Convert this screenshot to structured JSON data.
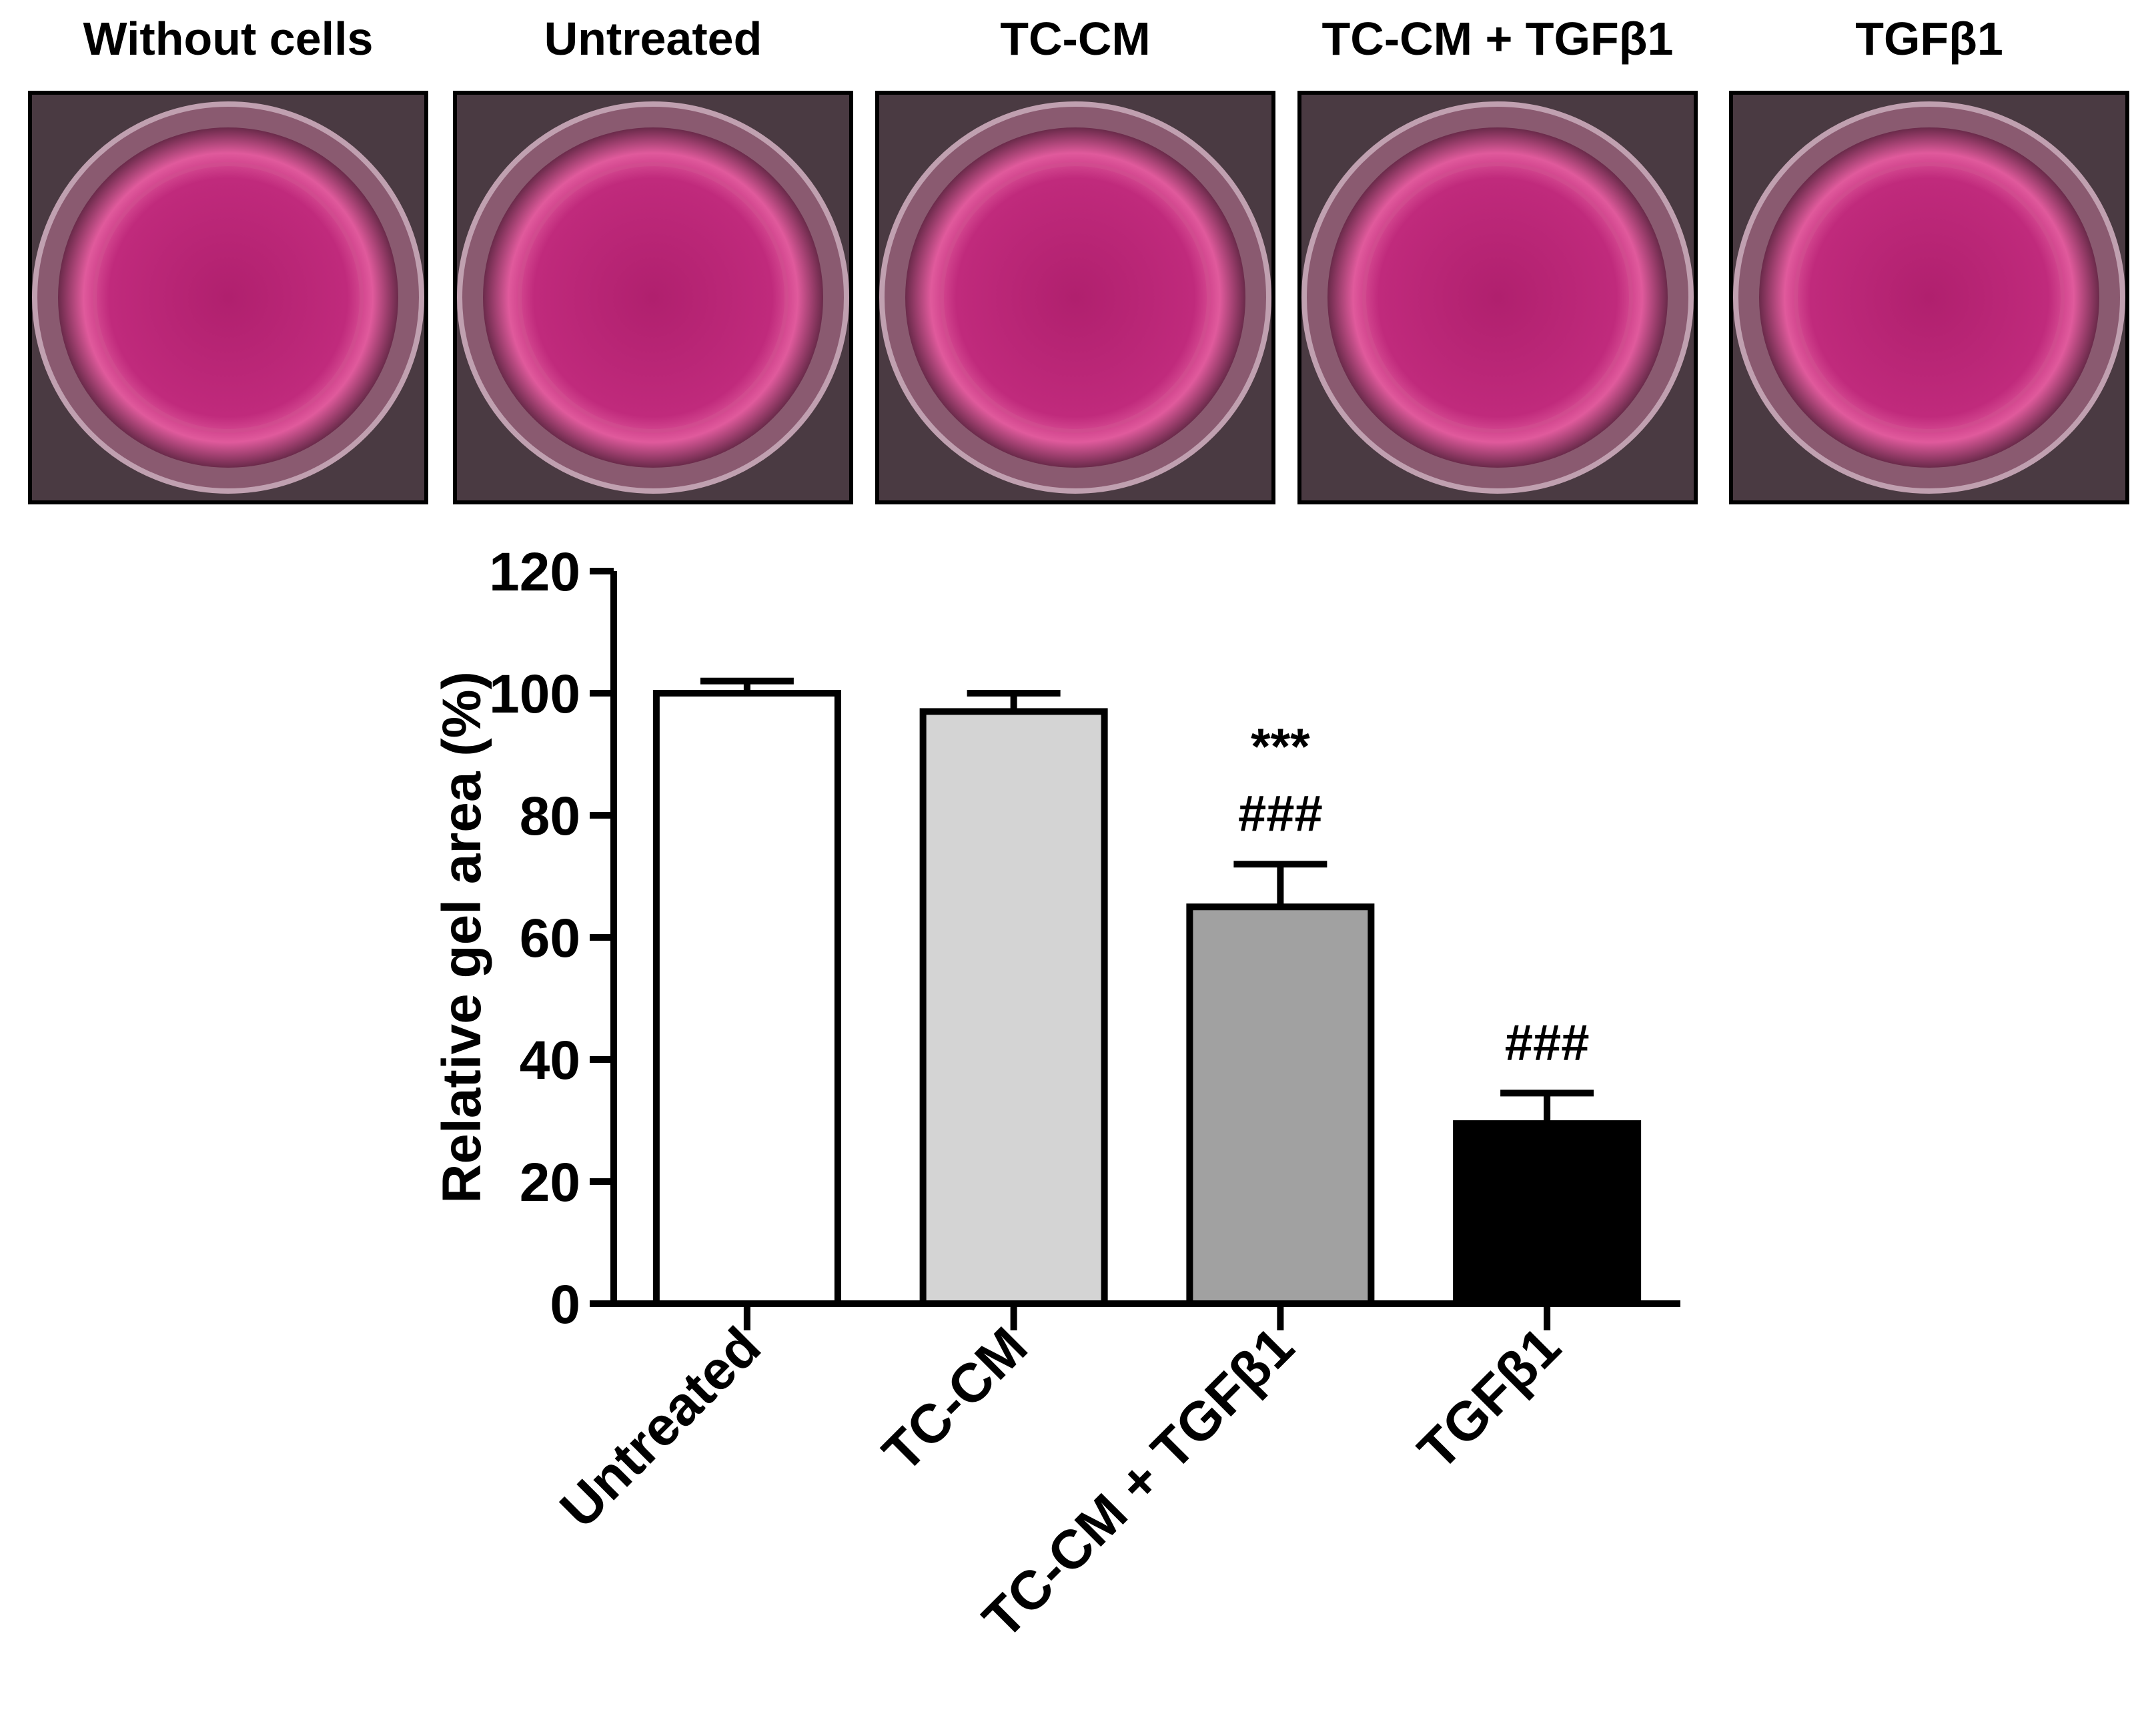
{
  "panels": [
    "Without cells",
    "Untreated",
    "TC-CM",
    "TC-CM + TGFβ1",
    "TGFβ1"
  ],
  "chart_data": {
    "type": "bar",
    "y_label": "Relative gel area (%)",
    "categories": [
      "Untreated",
      "TC-CM",
      "TC-CM + TGFβ1",
      "TGFβ1"
    ],
    "values": [
      100,
      97,
      65,
      29.5
    ],
    "errors": [
      2,
      3,
      7,
      5
    ],
    "colors": [
      "#ffffff",
      "#d4d4d4",
      "#a1a1a1",
      "#000000"
    ],
    "ylim": [
      0,
      120
    ],
    "yticks": [
      0,
      20,
      40,
      60,
      80,
      100,
      120
    ],
    "annotations": [
      {
        "text": "***",
        "category": "TC-CM + TGFβ1"
      },
      {
        "text": "###",
        "category": "TC-CM + TGFβ1"
      },
      {
        "text": "###",
        "category": "TGFβ1"
      }
    ]
  }
}
